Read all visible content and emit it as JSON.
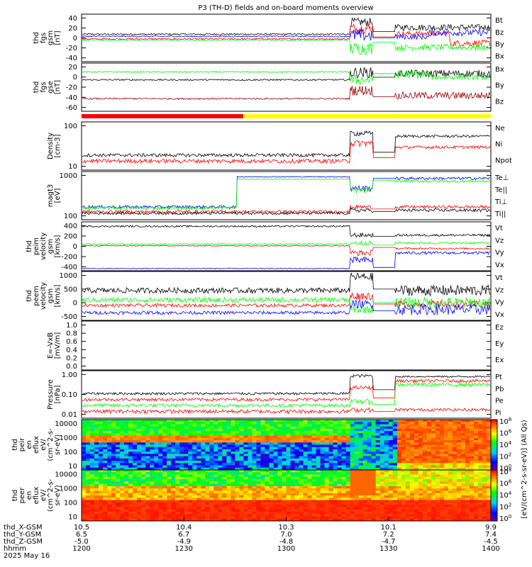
{
  "title": "P3 (TH-D) fields and on-board moments overview",
  "colors": {
    "black": "#000000",
    "red": "#ff0000",
    "green": "#00ff00",
    "blue": "#0000ff",
    "darkred": "#990000",
    "yellow": "#ffff00"
  },
  "chart_data": [
    {
      "type": "line",
      "panel": "fgs_gsm",
      "ylabel": [
        "thd",
        "fgs",
        "gsm",
        "[nT]"
      ],
      "yticks": [
        "40",
        "20",
        "0",
        "-20",
        "-40"
      ],
      "ylim": [
        -45,
        45
      ],
      "series": [
        {
          "name": "Bt",
          "color": "#000000"
        },
        {
          "name": "Bz",
          "color": "#ff0000"
        },
        {
          "name": "By",
          "color": "#00ff00"
        },
        {
          "name": "Bx",
          "color": "#0000ff"
        }
      ]
    },
    {
      "type": "line",
      "panel": "fgs_gse",
      "ylabel": [
        "thd",
        "fgs",
        "gse",
        "[nT]"
      ],
      "yticks": [
        "20",
        "0",
        "-20",
        "-40",
        "-60"
      ],
      "ylim": [
        -70,
        22
      ],
      "series": [
        {
          "name": "Bx",
          "color": "#000000"
        },
        {
          "name": "By",
          "color": "#00ff00"
        },
        {
          "name": "Bz",
          "color": "#990000"
        }
      ]
    },
    {
      "type": "line",
      "panel": "density",
      "ylabel": [
        "Density",
        "[cm-3]"
      ],
      "yticks": [
        "100",
        "10"
      ],
      "log": true,
      "series": [
        {
          "name": "Ne",
          "color": "#ff0000"
        },
        {
          "name": "Ni",
          "color": "#000000"
        },
        {
          "name": "Npot",
          "color": "#0000ff"
        }
      ]
    },
    {
      "type": "line",
      "panel": "temperature",
      "ylabel": [
        "magt3",
        "[eV]"
      ],
      "yticks": [
        "1000",
        "100"
      ],
      "log": true,
      "series": [
        {
          "name": "Te⊥",
          "color": "#ff0000"
        },
        {
          "name": "Te||",
          "color": "#000000"
        },
        {
          "name": "Ti⊥",
          "color": "#00ff00"
        },
        {
          "name": "Ti||",
          "color": "#00ff00"
        }
      ]
    },
    {
      "type": "line",
      "panel": "peim_velocity",
      "ylabel": [
        "thd",
        "peim",
        "velocity",
        "gsm",
        "[km/s]"
      ],
      "yticks": [
        "400",
        "200",
        "0",
        "-200",
        "-400"
      ],
      "series": [
        {
          "name": "Vt",
          "color": "#000000"
        },
        {
          "name": "Vz",
          "color": "#ff0000"
        },
        {
          "name": "Vy",
          "color": "#00ff00"
        },
        {
          "name": "Vx",
          "color": "#0000ff"
        }
      ]
    },
    {
      "type": "line",
      "panel": "peem_velocity",
      "ylabel": [
        "thd",
        "peem",
        "velocity",
        "gsm",
        "[km/s]"
      ],
      "yticks": [
        "1000",
        "500",
        "0",
        "-500"
      ],
      "series": [
        {
          "name": "Vt",
          "color": "#000000"
        },
        {
          "name": "Vz",
          "color": "#ff0000"
        },
        {
          "name": "Vy",
          "color": "#00ff00"
        },
        {
          "name": "Vx",
          "color": "#0000ff"
        }
      ]
    },
    {
      "type": "line",
      "panel": "efield",
      "ylabel": [
        "E=-VxB",
        "[mV/m]"
      ],
      "yticks": [
        "1.0",
        "0.8",
        "0.6",
        "0.4",
        "0.2",
        "0.0"
      ],
      "ylim": [
        0,
        1
      ],
      "series": [
        {
          "name": "Ez",
          "color": "#ff0000"
        },
        {
          "name": "Ey",
          "color": "#00ff00"
        },
        {
          "name": "Ex",
          "color": "#0000ff"
        }
      ]
    },
    {
      "type": "line",
      "panel": "pressure",
      "ylabel": [
        "Pressure",
        "[nPa]"
      ],
      "yticks": [
        "1.00",
        "0.10",
        "0.01"
      ],
      "log": true,
      "series": [
        {
          "name": "Pt",
          "color": "#000000"
        },
        {
          "name": "Pb",
          "color": "#ff0000"
        },
        {
          "name": "Pe",
          "color": "#00ff00"
        },
        {
          "name": "Pi",
          "color": "#0000ff"
        }
      ]
    },
    {
      "type": "heatmap",
      "panel": "peir_spectrogram",
      "ylabel": [
        "thd",
        "peir",
        "en",
        "eflux",
        "eV/",
        "(cm^2-s-",
        "sr-eV)"
      ],
      "yticks": [
        "10000",
        "1000",
        "100",
        "10"
      ]
    },
    {
      "type": "heatmap",
      "panel": "peer_spectrogram",
      "ylabel": [
        "thd",
        "peer",
        "en",
        "eflux",
        "eV/",
        "(cm^2-s-",
        "sr-eV)"
      ],
      "yticks": [
        "10000",
        "1000",
        "100",
        "10"
      ]
    }
  ],
  "colorbar": {
    "upper_ticks": [
      "10^8",
      "10^6",
      "10^4",
      "10^2",
      "10^0"
    ],
    "lower_ticks": [
      "10^8",
      "10^6",
      "10^4",
      "10^2",
      "10^0"
    ],
    "label": "[eV/(cm^2-s-sr-eV)] (All Qs)"
  },
  "xaxis": {
    "rows": [
      {
        "label": "thd_X-GSM",
        "values": [
          "10.5",
          "10.4",
          "10.3",
          "10.1",
          "9.9"
        ]
      },
      {
        "label": "thd_Y-GSM",
        "values": [
          "6.5",
          "6.7",
          "7.0",
          "7.2",
          "7.4"
        ]
      },
      {
        "label": "thd_Z-GSM",
        "values": [
          "-5.0",
          "-4.9",
          "-4.8",
          "-4.7",
          "-4.5"
        ]
      },
      {
        "label": "hhmm",
        "values": [
          "1200",
          "1230",
          "1300",
          "1330",
          "1400"
        ]
      }
    ],
    "date": "2025 May 16"
  }
}
